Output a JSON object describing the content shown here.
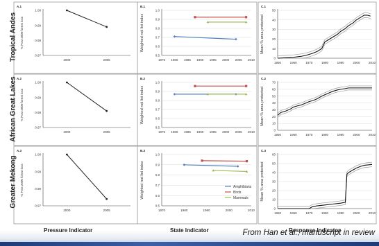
{
  "row_labels": [
    "Tropical Andes",
    "African Great Lakes",
    "Greater Mekong"
  ],
  "column_labels": [
    "Pressure Indicator",
    "State Indicator",
    "Response Indicator"
  ],
  "credit": "From Han et al., manuscript in review",
  "colors": {
    "amphibians": "#4f81bd",
    "birds": "#c0504d",
    "mammals": "#9bbb59",
    "pressure_line": "#222222",
    "response_line": "#111111",
    "response_band": "#9a9a9a"
  },
  "chart_data": [
    {
      "id": "A.1",
      "type": "line",
      "ylabel": "% Post 2000 forest loss",
      "x": [
        2000,
        2005
      ],
      "xticks": [
        2000,
        2005
      ],
      "xlim": [
        1997,
        2008
      ],
      "ylim": [
        0.97,
        1.0
      ],
      "yticks": [
        "1.00",
        "0.99",
        "0.98",
        "0.97"
      ],
      "series": [
        {
          "values": [
            1.0,
            0.989
          ]
        }
      ]
    },
    {
      "id": "A.2",
      "type": "line",
      "ylabel": "% Post 2000 forest loss",
      "x": [
        2000,
        2005
      ],
      "xticks": [
        2000,
        2005
      ],
      "xlim": [
        1997,
        2008
      ],
      "ylim": [
        0.97,
        1.0
      ],
      "yticks": [
        "1.00",
        "0.99",
        "0.98",
        "0.97"
      ],
      "series": [
        {
          "values": [
            1.0,
            0.981
          ]
        }
      ]
    },
    {
      "id": "A.3",
      "type": "line",
      "ylabel": "% Post 2000 forest loss",
      "x": [
        2000,
        2005
      ],
      "xticks": [
        2000,
        2005
      ],
      "xlim": [
        1997,
        2008
      ],
      "ylim": [
        0.97,
        1.0
      ],
      "yticks": [
        "1.00",
        "0.99",
        "0.98",
        "0.97"
      ],
      "series": [
        {
          "values": [
            1.0,
            0.974
          ]
        }
      ]
    },
    {
      "id": "B.1",
      "type": "line",
      "ylabel": "Weighted red list index",
      "xlim": [
        1975,
        2010
      ],
      "xticks": [
        1975,
        1980,
        1985,
        1990,
        1995,
        2000,
        2005,
        2010
      ],
      "ylim": [
        0.5,
        1.0
      ],
      "yticks": [
        "1.0",
        "0.9",
        "0.8",
        "0.7",
        "0.6",
        "0.5"
      ],
      "series": [
        {
          "name": "Amphibians",
          "x": [
            1980,
            2004
          ],
          "values": [
            0.71,
            0.68
          ]
        },
        {
          "name": "Birds",
          "x": [
            1988,
            2008
          ],
          "values": [
            0.925,
            0.925
          ]
        },
        {
          "name": "Mammals",
          "x": [
            1993,
            2008
          ],
          "values": [
            0.87,
            0.87
          ]
        }
      ]
    },
    {
      "id": "B.2",
      "type": "line",
      "ylabel": "Weighted red list index",
      "xlim": [
        1975,
        2010
      ],
      "xticks": [
        1975,
        1980,
        1985,
        1990,
        1995,
        2000,
        2005,
        2010
      ],
      "ylim": [
        0.5,
        1.0
      ],
      "yticks": [
        "1.0",
        "0.9",
        "0.8",
        "0.7",
        "0.6",
        "0.5"
      ],
      "series": [
        {
          "name": "Amphibians",
          "x": [
            1980,
            2004
          ],
          "values": [
            0.87,
            0.87
          ]
        },
        {
          "name": "Birds",
          "x": [
            1988,
            2008
          ],
          "values": [
            0.96,
            0.96
          ]
        },
        {
          "name": "Mammals",
          "x": [
            1993,
            2008
          ],
          "values": [
            0.87,
            0.87
          ]
        }
      ]
    },
    {
      "id": "B.3",
      "type": "line",
      "ylabel": "Weighted red list index",
      "xlim": [
        1970,
        2010
      ],
      "xticks": [
        1970,
        1980,
        1990,
        2000,
        2010
      ],
      "ylim": [
        0.5,
        1.0
      ],
      "yticks": [
        "1.0",
        "0.9",
        "0.8",
        "0.7",
        "0.6",
        "0.5"
      ],
      "legend": [
        "Amphibians",
        "Birds",
        "Mammals"
      ],
      "legend_position": "bottom-right",
      "series": [
        {
          "name": "Amphibians",
          "x": [
            1980,
            2004
          ],
          "values": [
            0.9,
            0.885
          ]
        },
        {
          "name": "Birds",
          "x": [
            1988,
            2008
          ],
          "values": [
            0.94,
            0.935
          ]
        },
        {
          "name": "Mammals",
          "x": [
            1993,
            2008
          ],
          "values": [
            0.845,
            0.835
          ]
        }
      ]
    },
    {
      "id": "C.1",
      "type": "area",
      "ylabel": "Mean % area protected",
      "xlim": [
        1950,
        2010
      ],
      "xticks": [
        1950,
        1960,
        1970,
        1980,
        1990,
        2000,
        2010
      ],
      "ylim": [
        0,
        50
      ],
      "yticks": [
        "50",
        "40",
        "30",
        "20",
        "10",
        "0"
      ],
      "x": [
        1950,
        1955,
        1960,
        1965,
        1968,
        1972,
        1975,
        1978,
        1980,
        1983,
        1985,
        1988,
        1990,
        1993,
        1995,
        1998,
        2000,
        2003,
        2005,
        2007,
        2009
      ],
      "values": [
        0,
        0.5,
        1,
        2,
        3,
        5,
        7,
        10,
        17,
        20,
        22,
        25,
        28,
        31,
        34,
        37,
        40,
        43,
        45,
        45,
        44
      ],
      "band": 2.5
    },
    {
      "id": "C.2",
      "type": "area",
      "ylabel": "Mean % area protected",
      "xlim": [
        1950,
        2010
      ],
      "xticks": [
        1950,
        1960,
        1970,
        1980,
        1990,
        2000,
        2010
      ],
      "ylim": [
        0,
        70
      ],
      "yticks": [
        "70",
        "60",
        "50",
        "40",
        "30",
        "20",
        "10",
        "0"
      ],
      "x": [
        1950,
        1952,
        1955,
        1958,
        1960,
        1963,
        1965,
        1968,
        1970,
        1973,
        1975,
        1978,
        1980,
        1983,
        1985,
        1988,
        1990,
        1993,
        1995,
        2000,
        2005,
        2010
      ],
      "values": [
        22,
        26,
        28,
        31,
        34,
        36,
        37,
        40,
        42,
        44,
        46,
        50,
        52,
        55,
        57,
        59,
        60,
        61,
        62,
        62,
        62,
        62
      ],
      "band": 3
    },
    {
      "id": "C.3",
      "type": "area",
      "ylabel": "Mean % area protected",
      "xlim": [
        1950,
        2010
      ],
      "xticks": [
        1950,
        1960,
        1970,
        1980,
        1990,
        2000,
        2010
      ],
      "ylim": [
        0,
        60
      ],
      "yticks": [
        "60",
        "50",
        "40",
        "30",
        "20",
        "10",
        "0"
      ],
      "x": [
        1950,
        1960,
        1970,
        1972,
        1975,
        1980,
        1985,
        1990,
        1993,
        1994,
        1995,
        1998,
        2000,
        2003,
        2005,
        2010
      ],
      "values": [
        0,
        0,
        0,
        2,
        3,
        4,
        5,
        6,
        7,
        38,
        40,
        43,
        45,
        47,
        48,
        49
      ],
      "band": 2.5
    }
  ]
}
